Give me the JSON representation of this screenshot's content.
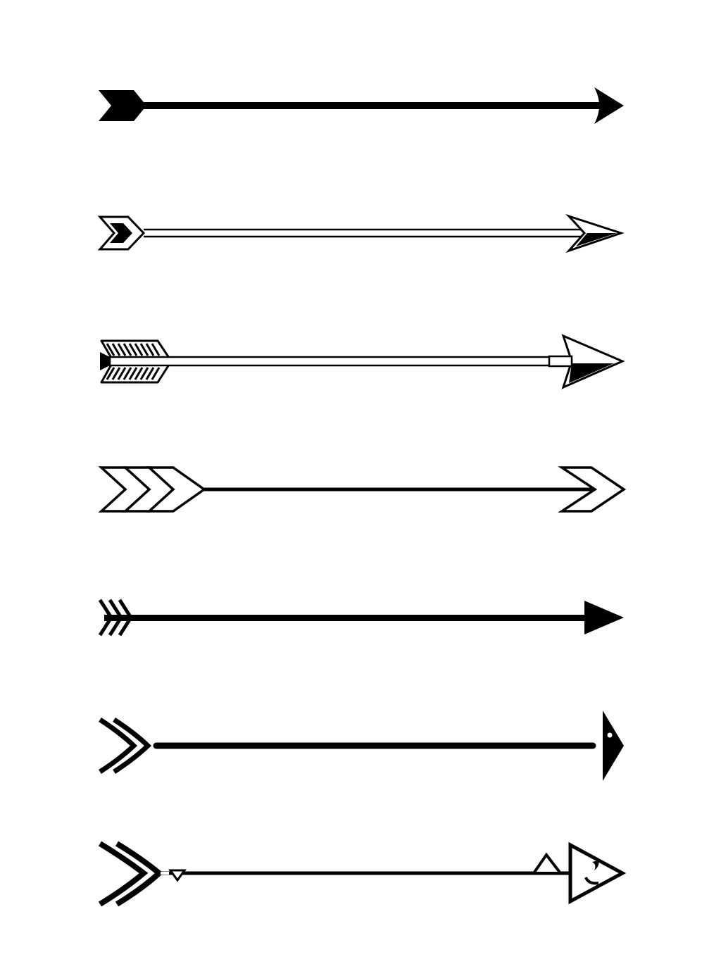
{
  "colors": {
    "background": "#ffffff",
    "ink": "#000000"
  },
  "arrows": [
    {
      "name": "arrow-solid-fletching",
      "style": "solid"
    },
    {
      "name": "arrow-double-line-outline",
      "style": "double-line"
    },
    {
      "name": "arrow-feathered-hatched",
      "style": "feathered"
    },
    {
      "name": "arrow-triple-chevron-outline",
      "style": "chevron-outline"
    },
    {
      "name": "arrow-triple-stroke-fletching",
      "style": "triple-stroke"
    },
    {
      "name": "arrow-chevron-tail-dot-head",
      "style": "chevron-dot"
    },
    {
      "name": "arrow-chevron-tail-ornate-head",
      "style": "ornate"
    }
  ]
}
